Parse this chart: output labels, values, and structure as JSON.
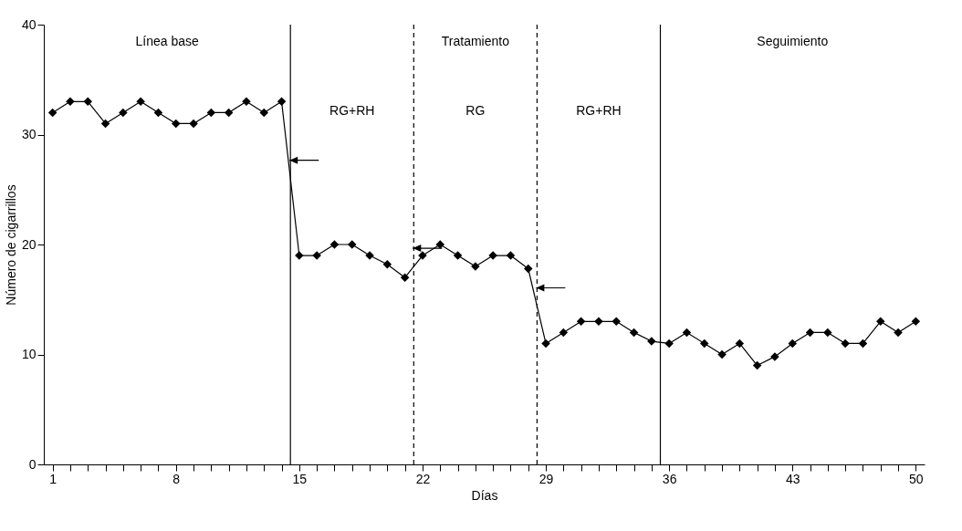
{
  "chart_data": {
    "type": "line",
    "xlabel": "Días",
    "ylabel": "Número de cigarrillos",
    "x": [
      1,
      2,
      3,
      4,
      5,
      6,
      7,
      8,
      9,
      10,
      11,
      12,
      13,
      14,
      15,
      16,
      17,
      18,
      19,
      20,
      21,
      22,
      23,
      24,
      25,
      26,
      27,
      28,
      29,
      30,
      31,
      32,
      33,
      34,
      35,
      36,
      37,
      38,
      39,
      40,
      41,
      42,
      43,
      44,
      45,
      46,
      47,
      48,
      49,
      50
    ],
    "series": [
      {
        "color": "#000000",
        "values": [
          32,
          33,
          33,
          31,
          32,
          33,
          32,
          31,
          31,
          32,
          32,
          33,
          32,
          33,
          19,
          19,
          20,
          20,
          19,
          18.2,
          17,
          19,
          20,
          19,
          18,
          19,
          19,
          17.8,
          11,
          12,
          13,
          13,
          13,
          12,
          11.2,
          11,
          12,
          11,
          10,
          11,
          9,
          9.8,
          11,
          12,
          12,
          11,
          11,
          13,
          12,
          13
        ]
      }
    ],
    "xlim": [
      0.5,
      50.5
    ],
    "ylim": [
      0,
      40
    ],
    "xticks": [
      1,
      {
        "value": 2,
        "label": null
      },
      {
        "value": 3,
        "label": null
      },
      {
        "value": 4,
        "label": null
      },
      {
        "value": 5,
        "label": null
      },
      {
        "value": 6,
        "label": null
      },
      {
        "value": 7,
        "label": null
      },
      8,
      {
        "value": 9,
        "label": null
      },
      {
        "value": 10,
        "label": null
      },
      {
        "value": 11,
        "label": null
      },
      {
        "value": 12,
        "label": null
      },
      {
        "value": 13,
        "label": null
      },
      {
        "value": 14,
        "label": null
      },
      15,
      {
        "value": 16,
        "label": null
      },
      {
        "value": 17,
        "label": null
      },
      {
        "value": 18,
        "label": null
      },
      {
        "value": 19,
        "label": null
      },
      {
        "value": 20,
        "label": null
      },
      {
        "value": 21,
        "label": null
      },
      22,
      {
        "value": 23,
        "label": null
      },
      {
        "value": 24,
        "label": null
      },
      {
        "value": 25,
        "label": null
      },
      {
        "value": 26,
        "label": null
      },
      {
        "value": 27,
        "label": null
      },
      {
        "value": 28,
        "label": null
      },
      29,
      {
        "value": 30,
        "label": null
      },
      {
        "value": 31,
        "label": null
      },
      {
        "value": 32,
        "label": null
      },
      {
        "value": 33,
        "label": null
      },
      {
        "value": 34,
        "label": null
      },
      {
        "value": 35,
        "label": null
      },
      36,
      {
        "value": 37,
        "label": null
      },
      {
        "value": 38,
        "label": null
      },
      {
        "value": 39,
        "label": null
      },
      {
        "value": 40,
        "label": null
      },
      {
        "value": 41,
        "label": null
      },
      {
        "value": 42,
        "label": null
      },
      43,
      {
        "value": 44,
        "label": null
      },
      {
        "value": 45,
        "label": null
      },
      {
        "value": 46,
        "label": null
      },
      {
        "value": 47,
        "label": null
      },
      {
        "value": 48,
        "label": null
      },
      {
        "value": 49,
        "label": null
      },
      50
    ],
    "yticks": [
      0,
      10,
      20,
      30,
      40
    ],
    "grid": false,
    "marker": "diamond",
    "line_style": "solid",
    "ref_lines": [
      {
        "axis": "x",
        "value": 14.5,
        "line_style": "solid",
        "color": "#000000"
      },
      {
        "axis": "x",
        "value": 21.5,
        "line_style": "dashed",
        "color": "#000000"
      },
      {
        "axis": "x",
        "value": 28.5,
        "line_style": "dashed",
        "color": "#000000"
      },
      {
        "axis": "x",
        "value": 35.5,
        "line_style": "solid",
        "color": "#000000"
      }
    ],
    "annotations": [
      "Línea base",
      "Tratamiento",
      "Seguimiento",
      "RG+RH",
      "RG",
      "RG+RH"
    ]
  }
}
